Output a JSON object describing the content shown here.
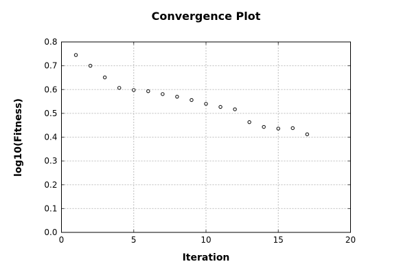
{
  "chart_data": {
    "type": "scatter",
    "title": "Convergence Plot",
    "xlabel": "Iteration",
    "ylabel": "log10(Fitness)",
    "xlim": [
      0,
      20
    ],
    "ylim": [
      0.0,
      0.8
    ],
    "xticks": [
      0,
      5,
      10,
      15,
      20
    ],
    "yticks": [
      0.0,
      0.1,
      0.2,
      0.3,
      0.4,
      0.5,
      0.6,
      0.7,
      0.8
    ],
    "grid": true,
    "legend": "none",
    "marker": "open-circle",
    "series": [
      {
        "name": "fitness",
        "x": [
          1,
          2,
          3,
          4,
          5,
          6,
          7,
          8,
          9,
          10,
          11,
          12,
          13,
          14,
          15,
          16,
          17
        ],
        "y": [
          0.745,
          0.7,
          0.651,
          0.607,
          0.598,
          0.593,
          0.581,
          0.57,
          0.556,
          0.54,
          0.527,
          0.517,
          0.463,
          0.443,
          0.436,
          0.438,
          0.412
        ]
      }
    ],
    "colors": {
      "background": "#ffffff",
      "plot_border": "#000000",
      "gridline": "#bdbdbd",
      "tick": "#444444",
      "marker_stroke": "#1a1a1a",
      "marker_fill": "#ffffff",
      "text": "#000000"
    }
  }
}
